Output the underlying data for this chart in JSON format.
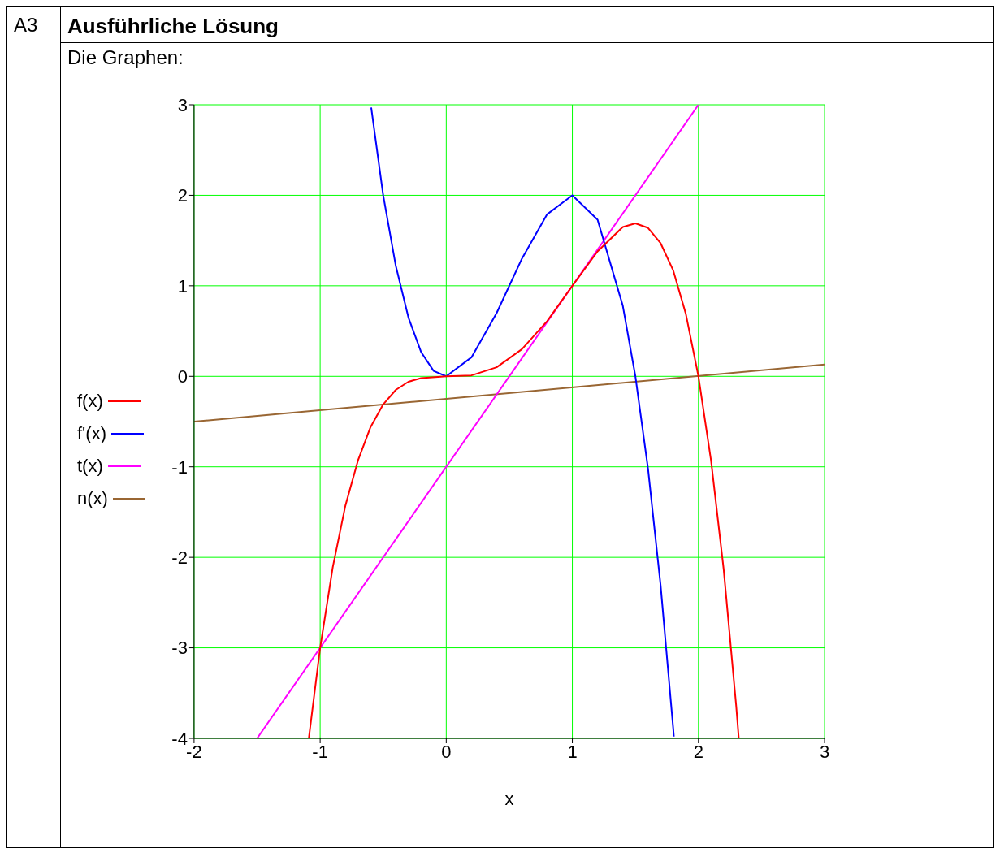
{
  "chart_data": {
    "type": "line",
    "title": "Ausführliche Lösung",
    "subtitle": "Die Graphen:",
    "annotations": [
      "A3"
    ],
    "xlabel": "x",
    "series": [
      {
        "name": "f(x)",
        "color": "#ff0000",
        "x": [
          -1.09,
          -1,
          -0.9,
          -0.8,
          -0.7,
          -0.6,
          -0.5,
          -0.4,
          -0.3,
          -0.2,
          0,
          0.2,
          0.4,
          0.6,
          0.8,
          1,
          1.2,
          1.4,
          1.5,
          1.6,
          1.7,
          1.8,
          1.9,
          2,
          2.1,
          2.2,
          2.3,
          2.32
        ],
        "values": [
          -4,
          -3,
          -2.11,
          -1.43,
          -0.93,
          -0.56,
          -0.31,
          -0.15,
          -0.06,
          -0.02,
          0,
          0.01,
          0.1,
          0.3,
          0.61,
          1,
          1.38,
          1.65,
          1.69,
          1.64,
          1.47,
          1.17,
          0.69,
          0,
          -0.93,
          -2.13,
          -3.65,
          -4
        ]
      },
      {
        "name": "f'(x)",
        "color": "#0000ff",
        "x": [
          -0.595,
          -0.5,
          -0.4,
          -0.3,
          -0.2,
          -0.1,
          0,
          0.2,
          0.4,
          0.6,
          0.8,
          1,
          1.2,
          1.4,
          1.5,
          1.6,
          1.7,
          1.8,
          1.805
        ],
        "values": [
          2.97,
          2,
          1.22,
          0.65,
          0.27,
          0.06,
          0,
          0.21,
          0.7,
          1.3,
          1.79,
          2,
          1.73,
          0.78,
          0,
          -1.02,
          -2.31,
          -3.89,
          -3.98
        ]
      },
      {
        "name": "t(x)",
        "color": "#ff00ff",
        "x": [
          -1.5,
          2
        ],
        "values": [
          -4,
          3
        ]
      },
      {
        "name": "n(x)",
        "color": "#996633",
        "x": [
          -2,
          3
        ],
        "values": [
          -0.5,
          0.13
        ]
      }
    ],
    "xlim": [
      -2,
      3
    ],
    "ylim": [
      -4,
      3
    ],
    "xticks": [
      -2,
      -1,
      0,
      1,
      2,
      3
    ],
    "yticks": [
      -4,
      -3,
      -2,
      -1,
      0,
      1,
      2,
      3
    ],
    "grid": true,
    "legend": "left",
    "marker": "none",
    "line_style": "solid"
  }
}
